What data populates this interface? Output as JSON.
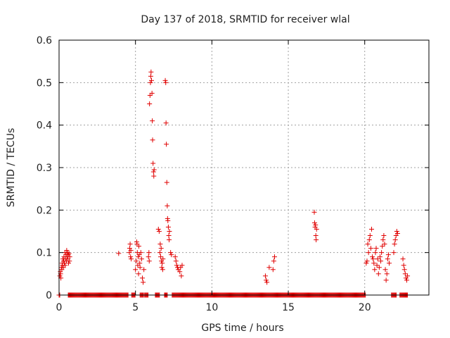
{
  "chart_data": {
    "type": "scatter",
    "title": "Day 137 of 2018, SRMTID for receiver wlal",
    "xlabel": "GPS time / hours",
    "ylabel": "SRMTID / TECUs",
    "xlim": [
      0,
      24.2
    ],
    "ylim": [
      0,
      0.6
    ],
    "grid": true,
    "x_ticks": [
      0,
      5,
      10,
      15,
      20
    ],
    "y_ticks": [
      0,
      0.1,
      0.2,
      0.3,
      0.4,
      0.5,
      0.6
    ],
    "x_tick_labels": [
      "0",
      "5",
      "10",
      "15",
      "20"
    ],
    "y_tick_labels": [
      "0",
      "0.1",
      "0.2",
      "0.3",
      "0.4",
      "0.5",
      "0.6"
    ],
    "marker": "+",
    "color": "#e00000",
    "series": [
      {
        "name": "SRMTID",
        "points": [
          [
            0.05,
            0.045
          ],
          [
            0.08,
            0.055
          ],
          [
            0.1,
            0.05
          ],
          [
            0.12,
            0.04
          ],
          [
            0.15,
            0.065
          ],
          [
            0.18,
            0.06
          ],
          [
            0.2,
            0.075
          ],
          [
            0.22,
            0.07
          ],
          [
            0.25,
            0.085
          ],
          [
            0.28,
            0.065
          ],
          [
            0.3,
            0.08
          ],
          [
            0.32,
            0.09
          ],
          [
            0.35,
            0.075
          ],
          [
            0.38,
            0.1
          ],
          [
            0.4,
            0.07
          ],
          [
            0.42,
            0.085
          ],
          [
            0.45,
            0.095
          ],
          [
            0.48,
            0.08
          ],
          [
            0.5,
            0.105
          ],
          [
            0.52,
            0.09
          ],
          [
            0.55,
            0.1
          ],
          [
            0.58,
            0.085
          ],
          [
            0.6,
            0.095
          ],
          [
            0.62,
            0.075
          ],
          [
            0.65,
            0.098
          ],
          [
            0.68,
            0.08
          ],
          [
            0.7,
            0.09
          ],
          [
            3.9,
            0.098
          ],
          [
            4.6,
            0.1
          ],
          [
            4.62,
            0.11
          ],
          [
            4.65,
            0.12
          ],
          [
            4.68,
            0.09
          ],
          [
            4.7,
            0.105
          ],
          [
            4.72,
            0.085
          ],
          [
            5.0,
            0.06
          ],
          [
            5.05,
            0.08
          ],
          [
            5.08,
            0.125
          ],
          [
            5.1,
            0.12
          ],
          [
            5.12,
            0.1
          ],
          [
            5.15,
            0.07
          ],
          [
            5.18,
            0.09
          ],
          [
            5.2,
            0.05
          ],
          [
            5.22,
            0.115
          ],
          [
            5.25,
            0.095
          ],
          [
            5.28,
            0.075
          ],
          [
            5.3,
            0.065
          ],
          [
            5.35,
            0.1
          ],
          [
            5.4,
            0.085
          ],
          [
            5.45,
            0.04
          ],
          [
            5.5,
            0.03
          ],
          [
            5.55,
            0.06
          ],
          [
            5.85,
            0.09
          ],
          [
            5.88,
            0.1
          ],
          [
            5.9,
            0.08
          ],
          [
            5.92,
            0.45
          ],
          [
            5.95,
            0.47
          ],
          [
            5.98,
            0.5
          ],
          [
            6.0,
            0.515
          ],
          [
            6.02,
            0.525
          ],
          [
            6.05,
            0.505
          ],
          [
            6.08,
            0.475
          ],
          [
            6.1,
            0.41
          ],
          [
            6.12,
            0.365
          ],
          [
            6.15,
            0.31
          ],
          [
            6.18,
            0.29
          ],
          [
            6.2,
            0.28
          ],
          [
            6.22,
            0.295
          ],
          [
            6.5,
            0.155
          ],
          [
            6.55,
            0.15
          ],
          [
            6.6,
            0.1
          ],
          [
            6.62,
            0.12
          ],
          [
            6.65,
            0.09
          ],
          [
            6.68,
            0.11
          ],
          [
            6.7,
            0.08
          ],
          [
            6.72,
            0.065
          ],
          [
            6.75,
            0.075
          ],
          [
            6.78,
            0.06
          ],
          [
            6.8,
            0.085
          ],
          [
            6.95,
            0.505
          ],
          [
            6.98,
            0.5
          ],
          [
            7.0,
            0.405
          ],
          [
            7.02,
            0.355
          ],
          [
            7.05,
            0.265
          ],
          [
            7.08,
            0.21
          ],
          [
            7.1,
            0.18
          ],
          [
            7.12,
            0.175
          ],
          [
            7.15,
            0.16
          ],
          [
            7.18,
            0.14
          ],
          [
            7.2,
            0.13
          ],
          [
            7.22,
            0.15
          ],
          [
            7.3,
            0.1
          ],
          [
            7.35,
            0.095
          ],
          [
            7.6,
            0.09
          ],
          [
            7.65,
            0.08
          ],
          [
            7.7,
            0.07
          ],
          [
            7.75,
            0.065
          ],
          [
            7.8,
            0.06
          ],
          [
            7.9,
            0.055
          ],
          [
            7.95,
            0.065
          ],
          [
            8.0,
            0.045
          ],
          [
            8.05,
            0.07
          ],
          [
            13.5,
            0.045
          ],
          [
            13.55,
            0.035
          ],
          [
            13.6,
            0.03
          ],
          [
            13.75,
            0.065
          ],
          [
            14.0,
            0.06
          ],
          [
            14.05,
            0.08
          ],
          [
            14.1,
            0.09
          ],
          [
            16.7,
            0.195
          ],
          [
            16.72,
            0.17
          ],
          [
            16.75,
            0.16
          ],
          [
            16.78,
            0.165
          ],
          [
            16.8,
            0.14
          ],
          [
            16.82,
            0.13
          ],
          [
            16.85,
            0.155
          ],
          [
            20.1,
            0.075
          ],
          [
            20.15,
            0.08
          ],
          [
            20.2,
            0.12
          ],
          [
            20.25,
            0.1
          ],
          [
            20.3,
            0.13
          ],
          [
            20.35,
            0.14
          ],
          [
            20.4,
            0.11
          ],
          [
            20.45,
            0.155
          ],
          [
            20.5,
            0.09
          ],
          [
            20.55,
            0.085
          ],
          [
            20.6,
            0.075
          ],
          [
            20.65,
            0.06
          ],
          [
            20.7,
            0.1
          ],
          [
            20.75,
            0.11
          ],
          [
            20.8,
            0.07
          ],
          [
            20.85,
            0.085
          ],
          [
            20.9,
            0.05
          ],
          [
            20.95,
            0.065
          ],
          [
            21.0,
            0.09
          ],
          [
            21.05,
            0.08
          ],
          [
            21.1,
            0.1
          ],
          [
            21.15,
            0.115
          ],
          [
            21.2,
            0.13
          ],
          [
            21.25,
            0.14
          ],
          [
            21.3,
            0.12
          ],
          [
            21.35,
            0.06
          ],
          [
            21.4,
            0.035
          ],
          [
            21.45,
            0.05
          ],
          [
            21.5,
            0.085
          ],
          [
            21.55,
            0.095
          ],
          [
            21.6,
            0.075
          ],
          [
            21.9,
            0.1
          ],
          [
            21.95,
            0.12
          ],
          [
            22.0,
            0.13
          ],
          [
            22.05,
            0.14
          ],
          [
            22.1,
            0.15
          ],
          [
            22.15,
            0.145
          ],
          [
            22.5,
            0.085
          ],
          [
            22.55,
            0.07
          ],
          [
            22.6,
            0.06
          ],
          [
            22.65,
            0.05
          ],
          [
            22.7,
            0.04
          ],
          [
            22.75,
            0.035
          ],
          [
            22.8,
            0.045
          ]
        ]
      }
    ],
    "zero_ranges": [
      [
        0.0,
        0.05
      ],
      [
        0.6,
        4.55
      ],
      [
        4.75,
        5.0
      ],
      [
        5.3,
        5.55
      ],
      [
        5.6,
        5.85
      ],
      [
        6.3,
        6.6
      ],
      [
        6.9,
        7.1
      ],
      [
        7.4,
        20.05
      ],
      [
        21.75,
        22.1
      ],
      [
        22.3,
        22.8
      ]
    ]
  }
}
